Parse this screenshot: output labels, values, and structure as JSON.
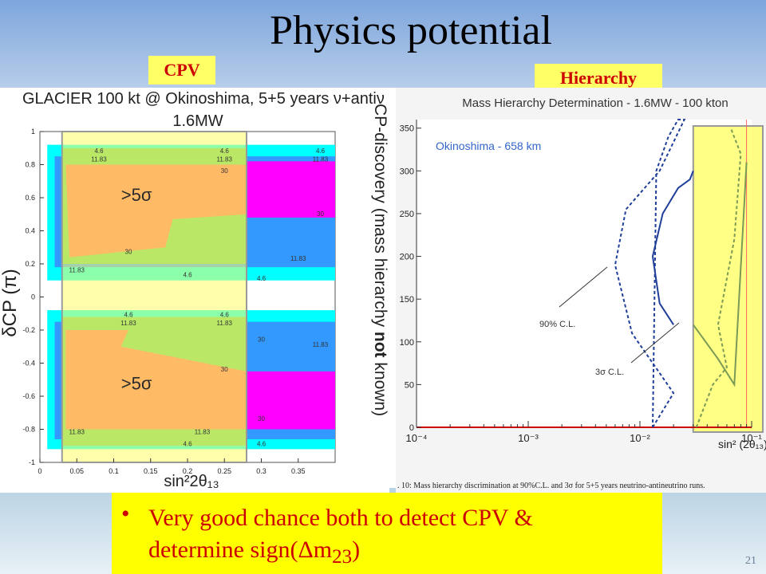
{
  "slide": {
    "title": "Physics potential",
    "tag_left": "CPV",
    "tag_right": "Hierarchy",
    "bullet_line1": "Very good chance both to detect CPV &",
    "bullet_line2_pre": "determine sign(",
    "bullet_delta": "Δ",
    "bullet_m": "m",
    "bullet_sub": "23",
    "bullet_close": ")",
    "page_number": "21",
    "colors": {
      "tag_bg": "#ffff66",
      "tag_text": "#cc0000",
      "bullet_bg": "#ffff00",
      "bullet_text": "#cc0000"
    }
  },
  "chart_data": [
    {
      "type": "heatmap",
      "title_line1": "GLACIER 100 kt @ Okinoshima, 5+5 years ",
      "title_nu": "ν",
      "title_mid": "+anti",
      "title_nu2": "ν",
      "title_line2": "1.6MW",
      "xlabel": "sin²2θ₁₃",
      "ylabel": "δCP (π)",
      "xlim": [
        0,
        0.4
      ],
      "ylim": [
        -1,
        1
      ],
      "x_ticks": [
        "0",
        "0.05",
        "0.1",
        "0.15",
        "0.2",
        "0.25",
        "0.3",
        "0.35"
      ],
      "x_tick_values": [
        0,
        0.05,
        0.1,
        0.15,
        0.2,
        0.25,
        0.3,
        0.35
      ],
      "y_ticks": [
        "1",
        "0.8",
        "0.6",
        "0.4",
        "0.2",
        "0",
        "-0.2",
        "-0.4",
        "-0.6",
        "-0.8",
        "-1"
      ],
      "y_tick_values": [
        1,
        0.8,
        0.6,
        0.4,
        0.2,
        0,
        -0.2,
        -0.4,
        -0.6,
        -0.8,
        -1
      ],
      "annotations": [
        ">5σ",
        ">5σ"
      ],
      "contour_levels": [
        "4.6",
        "11.83",
        "30"
      ],
      "highlight_x_range": [
        0.03,
        0.28
      ],
      "side_label_pre": "CP-discovery (mass hierarchy ",
      "side_label_bold": "not",
      "side_label_post": " known)",
      "colors": {
        "cyan": "#00ffff",
        "blue": "#3399ff",
        "magenta": "#ff00ff",
        "green": "#66cc66",
        "red": "#ff6666",
        "highlight": "#ffff66"
      }
    },
    {
      "type": "line",
      "title": "Mass Hierarchy Determination - 1.6MW - 100 kton",
      "legend": "Okinoshima - 658 km",
      "xlabel": "sin² (2θ₁₃)",
      "x_scale": "log",
      "xlim": [
        0.0001,
        0.1
      ],
      "ylim": [
        0,
        360
      ],
      "y_ticks": [
        "0",
        "50",
        "100",
        "150",
        "200",
        "250",
        "300",
        "350"
      ],
      "y_tick_values": [
        0,
        50,
        100,
        150,
        200,
        250,
        300,
        350
      ],
      "x_ticks": [
        "10⁻⁴",
        "10⁻³",
        "10⁻²",
        "10⁻¹"
      ],
      "x_tick_values": [
        0.0001,
        0.001,
        0.01,
        0.1
      ],
      "labels": [
        "90% C.L.",
        "3σ C.L."
      ],
      "caption": ". 10: Mass hierarchy discrimination at 90%C.L. and 3σ for 5+5 years neutrino-antineutrino runs.",
      "highlight_x_range": [
        0.03,
        0.1
      ],
      "series": [
        {
          "name": "90% C.L.",
          "style": "dashed",
          "x": [
            0.013,
            0.02,
            0.0085,
            0.006,
            0.0075,
            0.015,
            0.025,
            0.022,
            0.018,
            0.014,
            0.013
          ],
          "y": [
            0,
            40,
            110,
            190,
            255,
            300,
            360,
            370,
            340,
            300,
            0
          ]
        },
        {
          "name": "90% C.L. (highlight region)",
          "style": "dashed",
          "x": [
            0.032,
            0.045,
            0.06,
            0.05,
            0.07,
            0.08,
            0.065
          ],
          "y": [
            0,
            50,
            70,
            120,
            220,
            320,
            350
          ]
        },
        {
          "name": "3σ C.L.",
          "style": "solid",
          "x": [
            0.02,
            0.015,
            0.013,
            0.016,
            0.022,
            0.028,
            0.03
          ],
          "y": [
            120,
            145,
            200,
            250,
            280,
            290,
            300
          ]
        },
        {
          "name": "3σ C.L. (highlight region)",
          "style": "solid",
          "x": [
            0.03,
            0.05,
            0.07,
            0.085,
            0.09
          ],
          "y": [
            120,
            80,
            50,
            250,
            310
          ]
        }
      ],
      "colors": {
        "curve": "#1f3f99",
        "highlight": "#ffff66",
        "axis_line": "#cc0000"
      }
    }
  ]
}
